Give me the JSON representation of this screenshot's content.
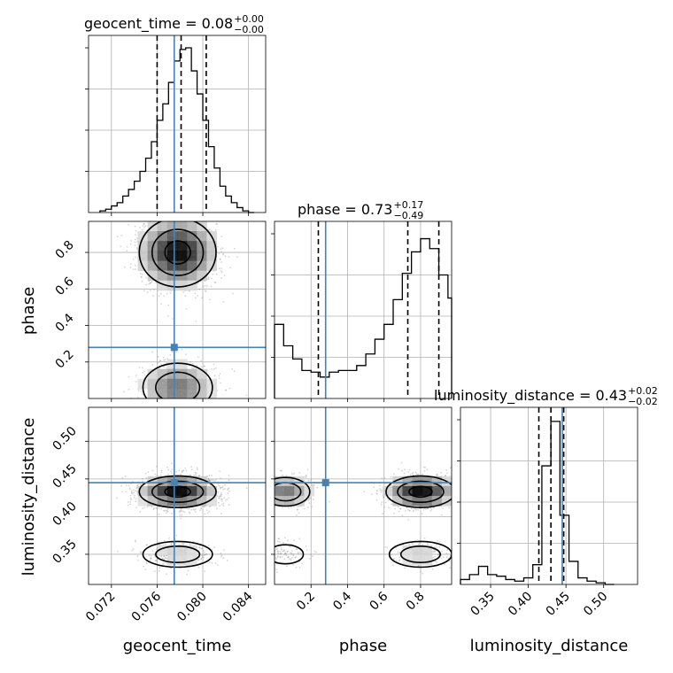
{
  "chart_data": {
    "type": "corner",
    "parameters": [
      "geocent_time",
      "phase",
      "luminosity_distance"
    ],
    "axis_labels": {
      "geocent_time": "geocent_time",
      "phase": "phase",
      "luminosity_distance": "luminosity_distance"
    },
    "ranges": {
      "geocent_time": [
        0.07,
        0.0855
      ],
      "phase": [
        0.0,
        0.97
      ],
      "luminosity_distance": [
        0.31,
        0.545
      ]
    },
    "ticks": {
      "geocent_time": {
        "values": [
          0.072,
          0.076,
          0.08,
          0.084
        ],
        "labels": [
          "0.072",
          "0.076",
          "0.080",
          "0.084"
        ]
      },
      "phase": {
        "values": [
          0.2,
          0.4,
          0.6,
          0.8
        ],
        "labels": [
          "0.2",
          "0.4",
          "0.6",
          "0.8"
        ]
      },
      "luminosity_distance": {
        "values": [
          0.35,
          0.4,
          0.45,
          0.5
        ],
        "labels": [
          "0.35",
          "0.40",
          "0.45",
          "0.50"
        ]
      }
    },
    "injection": {
      "geocent_time": 0.0775,
      "phase": 0.28,
      "luminosity_distance": 0.445
    },
    "titles": [
      {
        "param": "geocent_time",
        "name": "geocent_time",
        "median": "0.08",
        "plus": "+0.00",
        "minus": "−0.00"
      },
      {
        "param": "phase",
        "name": "phase",
        "median": "0.73",
        "plus": "+0.17",
        "minus": "−0.49"
      },
      {
        "param": "luminosity_distance",
        "name": "luminosity_distance",
        "median": "0.43",
        "plus": "+0.02",
        "minus": "−0.02"
      }
    ],
    "quantiles": {
      "geocent_time": [
        0.076,
        0.0781,
        0.0803
      ],
      "phase": [
        0.24,
        0.73,
        0.9
      ],
      "luminosity_distance": [
        0.414,
        0.43,
        0.447
      ]
    },
    "histograms": {
      "geocent_time": {
        "edges": [
          0.071,
          0.0715,
          0.072,
          0.0725,
          0.073,
          0.0735,
          0.074,
          0.0745,
          0.075,
          0.0755,
          0.076,
          0.0765,
          0.077,
          0.0775,
          0.078,
          0.0785,
          0.079,
          0.0795,
          0.08,
          0.0805,
          0.081,
          0.0815,
          0.082,
          0.0825,
          0.083,
          0.0835,
          0.084,
          0.0845
        ],
        "counts": [
          0.01,
          0.02,
          0.04,
          0.06,
          0.1,
          0.14,
          0.19,
          0.25,
          0.33,
          0.43,
          0.56,
          0.66,
          0.79,
          0.92,
          0.99,
          1.0,
          0.86,
          0.72,
          0.56,
          0.4,
          0.27,
          0.16,
          0.1,
          0.06,
          0.03,
          0.01,
          0.0
        ]
      },
      "phase": {
        "edges": [
          0.0,
          0.05,
          0.1,
          0.15,
          0.2,
          0.25,
          0.3,
          0.35,
          0.4,
          0.45,
          0.5,
          0.55,
          0.6,
          0.65,
          0.7,
          0.75,
          0.8,
          0.85,
          0.9,
          0.95,
          1.0
        ],
        "counts": [
          0.45,
          0.32,
          0.24,
          0.17,
          0.16,
          0.13,
          0.16,
          0.17,
          0.17,
          0.2,
          0.27,
          0.36,
          0.45,
          0.6,
          0.76,
          0.89,
          0.97,
          0.91,
          0.75,
          0.61
        ]
      },
      "luminosity_distance": {
        "edges": [
          0.31,
          0.322,
          0.334,
          0.346,
          0.358,
          0.37,
          0.382,
          0.394,
          0.406,
          0.418,
          0.43,
          0.442,
          0.454,
          0.466,
          0.478,
          0.49,
          0.502,
          0.514
        ],
        "counts": [
          0.03,
          0.06,
          0.11,
          0.06,
          0.05,
          0.03,
          0.02,
          0.04,
          0.12,
          0.72,
          0.99,
          0.42,
          0.14,
          0.04,
          0.02,
          0.01,
          0.0
        ]
      }
    },
    "show_grid": true,
    "colors": {
      "histogram": "#000000",
      "quantile": "#000000",
      "truth": "#4682b4",
      "contour": "#000000",
      "samples": "#888888",
      "grid": "#b0b0b0"
    }
  }
}
